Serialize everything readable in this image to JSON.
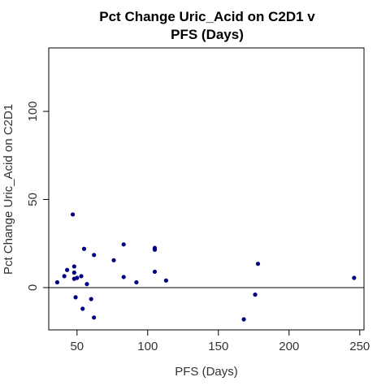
{
  "chart_data": {
    "type": "scatter",
    "title_lines": [
      "Pct Change Uric_Acid on C2D1 v",
      "PFS (Days)"
    ],
    "xlabel": "PFS (Days)",
    "ylabel": "Pct Change Uric_Acid on C2D1",
    "xlim": [
      30,
      253
    ],
    "ylim": [
      -24,
      136
    ],
    "x_ticks": [
      50,
      100,
      150,
      200,
      250
    ],
    "y_ticks": [
      0,
      50,
      100
    ],
    "reference_line_y": 0,
    "grid": false,
    "point_color": "#000080",
    "points": [
      {
        "x": 36,
        "y": 3
      },
      {
        "x": 41,
        "y": 6.5
      },
      {
        "x": 43,
        "y": 10
      },
      {
        "x": 47,
        "y": 41.5
      },
      {
        "x": 48,
        "y": 8.5
      },
      {
        "x": 48,
        "y": 5
      },
      {
        "x": 48,
        "y": 12
      },
      {
        "x": 49,
        "y": -5.5
      },
      {
        "x": 50,
        "y": 5.5
      },
      {
        "x": 53,
        "y": 6.5
      },
      {
        "x": 54,
        "y": -12
      },
      {
        "x": 55,
        "y": 22
      },
      {
        "x": 57,
        "y": 2
      },
      {
        "x": 60,
        "y": -6.5
      },
      {
        "x": 62,
        "y": 18.5
      },
      {
        "x": 62,
        "y": -17
      },
      {
        "x": 76,
        "y": 15.5
      },
      {
        "x": 83,
        "y": 24.5
      },
      {
        "x": 83,
        "y": 6
      },
      {
        "x": 92,
        "y": 3
      },
      {
        "x": 105,
        "y": 22.5
      },
      {
        "x": 105,
        "y": 21.5
      },
      {
        "x": 105,
        "y": 9
      },
      {
        "x": 113,
        "y": 4
      },
      {
        "x": 168,
        "y": -18
      },
      {
        "x": 176,
        "y": -4
      },
      {
        "x": 178,
        "y": 13.5
      },
      {
        "x": 246,
        "y": 5.5
      }
    ]
  }
}
